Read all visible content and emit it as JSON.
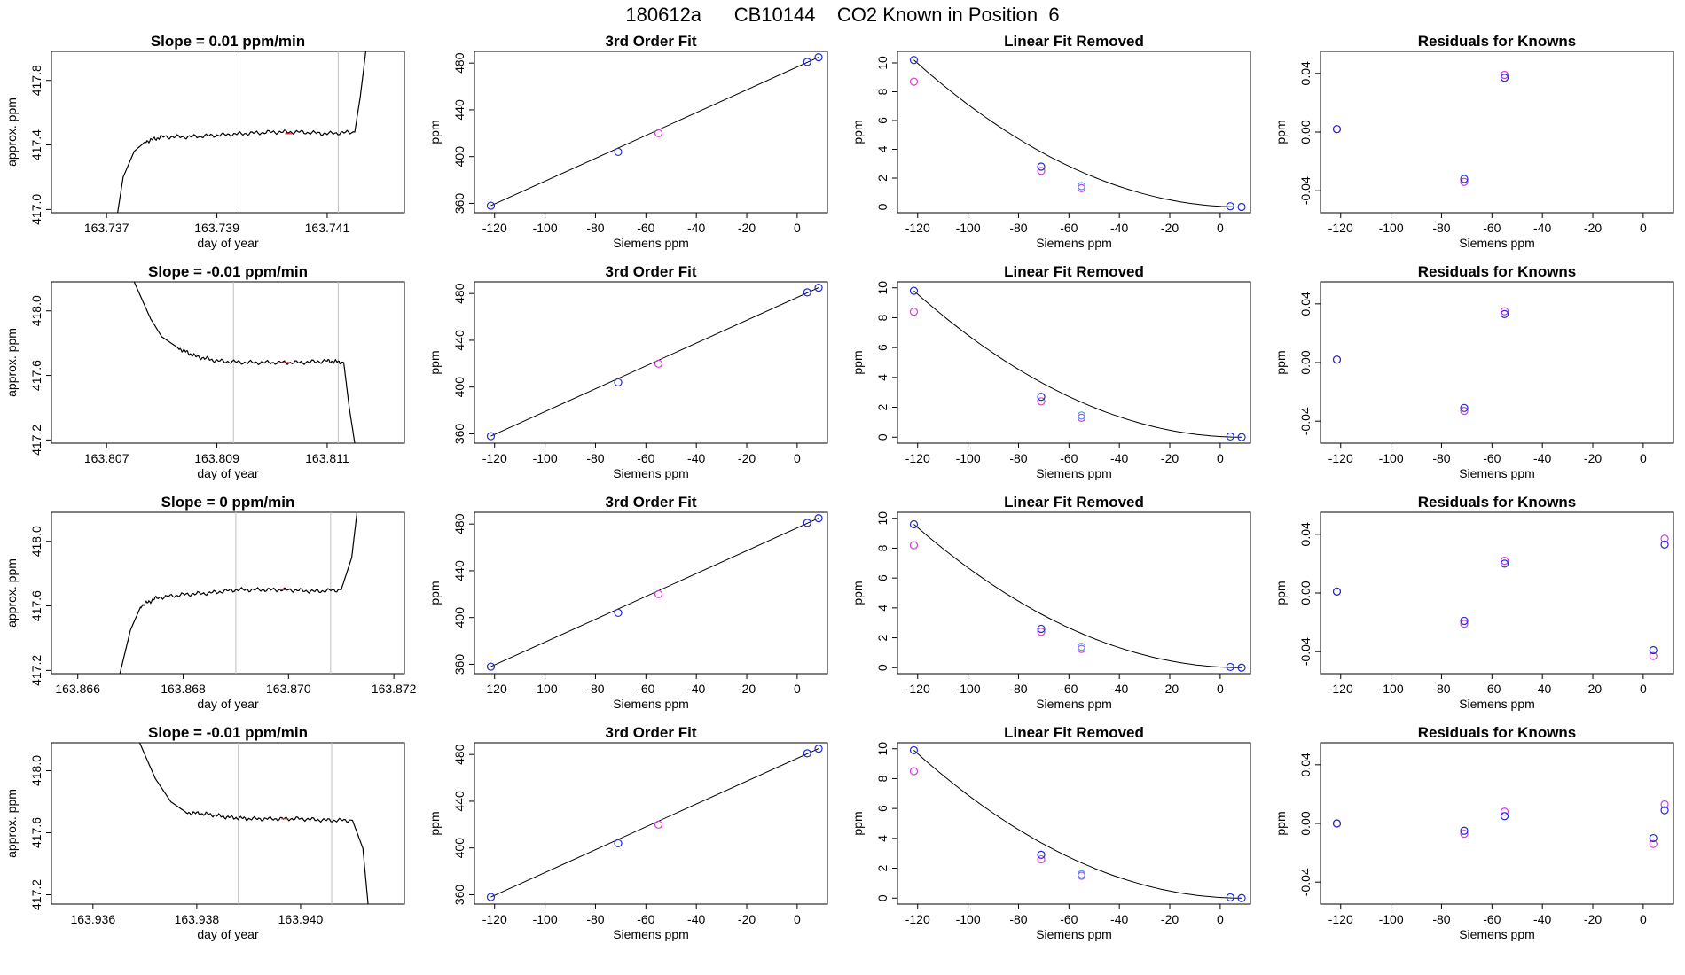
{
  "page": {
    "title": "180612a      CB10144    CO2 Known in Position  6"
  },
  "colors": {
    "axis": "#000000",
    "line": "#000000",
    "blue": "#1f2bd6",
    "magenta": "#d040d8",
    "cyan": "#3aa0e0",
    "red": "#e02020",
    "vline": "#bfbfbf"
  },
  "chart_data": [
    {
      "type": "line",
      "title": "Slope =  0.01  ppm/min",
      "xlabel": "day of year",
      "ylabel": "approx. ppm",
      "xlim": [
        163.736,
        163.7424
      ],
      "ylim": [
        416.98,
        417.98
      ],
      "xticks": [
        "163.737",
        "163.739",
        "163.741"
      ],
      "yticks": [
        "417.0",
        "417.4",
        "417.8"
      ],
      "vlines": [
        163.7394,
        163.7412
      ],
      "series": [
        {
          "x": [
            163.7372,
            163.7373,
            163.7375,
            163.7377,
            163.738,
            163.7385,
            163.739,
            163.7395,
            163.74,
            163.7405,
            163.741,
            163.7415,
            163.7416,
            163.7417
          ],
          "y": [
            416.98,
            417.2,
            417.36,
            417.42,
            417.45,
            417.45,
            417.46,
            417.47,
            417.48,
            417.48,
            417.47,
            417.48,
            417.7,
            417.98
          ]
        }
      ]
    },
    {
      "type": "line",
      "title": "3rd Order Fit",
      "xlabel": "Siemens ppm",
      "ylabel": "ppm",
      "xlim": [
        -128,
        12
      ],
      "ylim": [
        352,
        490
      ],
      "xticks": [
        "-120",
        "-100",
        "-80",
        "-60",
        "-40",
        "-20",
        "0"
      ],
      "yticks": [
        "360",
        "400",
        "440",
        "480"
      ],
      "series": [
        {
          "name": "fit",
          "x": [
            -121.5,
            8.5
          ],
          "y": [
            358,
            485
          ]
        },
        {
          "name": "blue points",
          "x": [
            -121.5,
            -71,
            4,
            8.5
          ],
          "y": [
            358,
            404,
            481,
            485
          ]
        },
        {
          "name": "magenta points",
          "x": [
            -55
          ],
          "y": [
            420
          ]
        }
      ]
    },
    {
      "type": "line",
      "title": "Linear Fit Removed",
      "xlabel": "Siemens ppm",
      "ylabel": "ppm",
      "xlim": [
        -128,
        12
      ],
      "ylim": [
        -0.4,
        10.8
      ],
      "xticks": [
        "-120",
        "-100",
        "-80",
        "-60",
        "-40",
        "-20",
        "0"
      ],
      "yticks": [
        "0",
        "2",
        "4",
        "6",
        "8",
        "10"
      ],
      "series": [
        {
          "name": "blue points",
          "x": [
            -121.5,
            -71,
            -55,
            4,
            8.5
          ],
          "y": [
            10.2,
            2.8,
            1.45,
            0.05,
            0.0
          ]
        },
        {
          "name": "magenta points",
          "x": [
            -121.5,
            -71,
            -55
          ],
          "y": [
            8.7,
            2.5,
            1.3
          ]
        }
      ]
    },
    {
      "type": "scatter",
      "title": "Residuals for Knowns",
      "xlabel": "Siemens ppm",
      "ylabel": "ppm",
      "xlim": [
        -128,
        12
      ],
      "ylim": [
        -0.055,
        0.055
      ],
      "xticks": [
        "-120",
        "-100",
        "-80",
        "-60",
        "-40",
        "-20",
        "0"
      ],
      "yticks": [
        "-0.04",
        "0.00",
        "0.04"
      ],
      "series": [
        {
          "name": "blue points",
          "x": [
            -121.5,
            -71,
            -55
          ],
          "y": [
            0.002,
            -0.032,
            0.037
          ]
        },
        {
          "name": "magenta points",
          "x": [
            -121.5,
            -71,
            -55
          ],
          "y": [
            0.002,
            -0.034,
            0.039
          ]
        }
      ]
    },
    {
      "type": "line",
      "title": "Slope =  -0.01  ppm/min",
      "xlabel": "day of year",
      "ylabel": "approx. ppm",
      "xlim": [
        163.806,
        163.8124
      ],
      "ylim": [
        417.18,
        418.18
      ],
      "xticks": [
        "163.807",
        "163.809",
        "163.811"
      ],
      "yticks": [
        "417.2",
        "417.6",
        "418.0"
      ],
      "vlines": [
        163.8093,
        163.8112
      ],
      "series": [
        {
          "x": [
            163.8075,
            163.8078,
            163.808,
            163.8083,
            163.8086,
            163.809,
            163.8095,
            163.81,
            163.8105,
            163.811,
            163.8113,
            163.8114,
            163.8115
          ],
          "y": [
            418.18,
            417.95,
            417.84,
            417.77,
            417.72,
            417.69,
            417.68,
            417.68,
            417.68,
            417.69,
            417.68,
            417.4,
            417.18
          ]
        }
      ]
    },
    {
      "type": "line",
      "title": "3rd Order Fit",
      "xlabel": "Siemens ppm",
      "ylabel": "ppm",
      "xlim": [
        -128,
        12
      ],
      "ylim": [
        352,
        490
      ],
      "xticks": [
        "-120",
        "-100",
        "-80",
        "-60",
        "-40",
        "-20",
        "0"
      ],
      "yticks": [
        "360",
        "400",
        "440",
        "480"
      ],
      "series": [
        {
          "name": "fit",
          "x": [
            -121.5,
            8.5
          ],
          "y": [
            358,
            485
          ]
        },
        {
          "name": "blue points",
          "x": [
            -121.5,
            -71,
            4,
            8.5
          ],
          "y": [
            358,
            404,
            481,
            485
          ]
        },
        {
          "name": "magenta points",
          "x": [
            -55
          ],
          "y": [
            420
          ]
        }
      ]
    },
    {
      "type": "line",
      "title": "Linear Fit Removed",
      "xlabel": "Siemens ppm",
      "ylabel": "ppm",
      "xlim": [
        -128,
        12
      ],
      "ylim": [
        -0.4,
        10.4
      ],
      "xticks": [
        "-120",
        "-100",
        "-80",
        "-60",
        "-40",
        "-20",
        "0"
      ],
      "yticks": [
        "0",
        "2",
        "4",
        "6",
        "8",
        "10"
      ],
      "series": [
        {
          "name": "blue points",
          "x": [
            -121.5,
            -71,
            -55,
            4,
            8.5
          ],
          "y": [
            9.8,
            2.7,
            1.45,
            0.05,
            0.0
          ]
        },
        {
          "name": "magenta points",
          "x": [
            -121.5,
            -71,
            -55
          ],
          "y": [
            8.4,
            2.4,
            1.3
          ]
        }
      ]
    },
    {
      "type": "scatter",
      "title": "Residuals for Knowns",
      "xlabel": "Siemens ppm",
      "ylabel": "ppm",
      "xlim": [
        -128,
        12
      ],
      "ylim": [
        -0.055,
        0.055
      ],
      "xticks": [
        "-120",
        "-100",
        "-80",
        "-60",
        "-40",
        "-20",
        "0"
      ],
      "yticks": [
        "-0.04",
        "0.00",
        "0.04"
      ],
      "series": [
        {
          "name": "blue points",
          "x": [
            -121.5,
            -71,
            -55
          ],
          "y": [
            0.002,
            -0.031,
            0.033
          ]
        },
        {
          "name": "magenta points",
          "x": [
            -121.5,
            -71,
            -55
          ],
          "y": [
            0.002,
            -0.033,
            0.035
          ]
        }
      ]
    },
    {
      "type": "line",
      "title": "Slope =  0  ppm/min",
      "xlabel": "day of year",
      "ylabel": "approx. ppm",
      "xlim": [
        163.8655,
        163.8722
      ],
      "ylim": [
        417.18,
        418.18
      ],
      "xticks": [
        "163.866",
        "163.868",
        "163.870",
        "163.872"
      ],
      "yticks": [
        "417.2",
        "417.6",
        "418.0"
      ],
      "vlines": [
        163.869,
        163.8708
      ],
      "series": [
        {
          "x": [
            163.8668,
            163.867,
            163.8672,
            163.8675,
            163.868,
            163.8685,
            163.869,
            163.8695,
            163.87,
            163.8705,
            163.871,
            163.8712,
            163.8713
          ],
          "y": [
            417.18,
            417.45,
            417.6,
            417.65,
            417.67,
            417.68,
            417.7,
            417.7,
            417.7,
            417.69,
            417.7,
            417.9,
            418.18
          ]
        }
      ]
    },
    {
      "type": "line",
      "title": "3rd Order Fit",
      "xlabel": "Siemens ppm",
      "ylabel": "ppm",
      "xlim": [
        -128,
        12
      ],
      "ylim": [
        352,
        490
      ],
      "xticks": [
        "-120",
        "-100",
        "-80",
        "-60",
        "-40",
        "-20",
        "0"
      ],
      "yticks": [
        "360",
        "400",
        "440",
        "480"
      ],
      "series": [
        {
          "name": "fit",
          "x": [
            -121.5,
            8.5
          ],
          "y": [
            358,
            485
          ]
        },
        {
          "name": "blue points",
          "x": [
            -121.5,
            -71,
            4,
            8.5
          ],
          "y": [
            358,
            404,
            481,
            485
          ]
        },
        {
          "name": "magenta points",
          "x": [
            -55
          ],
          "y": [
            420
          ]
        }
      ]
    },
    {
      "type": "line",
      "title": "Linear Fit Removed",
      "xlabel": "Siemens ppm",
      "ylabel": "ppm",
      "xlim": [
        -128,
        12
      ],
      "ylim": [
        -0.4,
        10.4
      ],
      "xticks": [
        "-120",
        "-100",
        "-80",
        "-60",
        "-40",
        "-20",
        "0"
      ],
      "yticks": [
        "0",
        "2",
        "4",
        "6",
        "8",
        "10"
      ],
      "series": [
        {
          "name": "blue points",
          "x": [
            -121.5,
            -71,
            -55,
            4,
            8.5
          ],
          "y": [
            9.6,
            2.6,
            1.4,
            0.05,
            0.0
          ]
        },
        {
          "name": "magenta points",
          "x": [
            -121.5,
            -71,
            -55
          ],
          "y": [
            8.2,
            2.4,
            1.25
          ]
        }
      ]
    },
    {
      "type": "scatter",
      "title": "Residuals for Knowns",
      "xlabel": "Siemens ppm",
      "ylabel": "ppm",
      "xlim": [
        -128,
        12
      ],
      "ylim": [
        -0.055,
        0.055
      ],
      "xticks": [
        "-120",
        "-100",
        "-80",
        "-60",
        "-40",
        "-20",
        "0"
      ],
      "yticks": [
        "-0.04",
        "0.00",
        "0.04"
      ],
      "series": [
        {
          "name": "blue points",
          "x": [
            -121.5,
            -71,
            -55,
            4,
            8.5
          ],
          "y": [
            0.001,
            -0.019,
            0.02,
            -0.039,
            0.033
          ]
        },
        {
          "name": "magenta points",
          "x": [
            -121.5,
            -71,
            -55,
            4,
            8.5
          ],
          "y": [
            0.001,
            -0.021,
            0.022,
            -0.043,
            0.037
          ]
        }
      ]
    },
    {
      "type": "line",
      "title": "Slope =  -0.01  ppm/min",
      "xlabel": "day of year",
      "ylabel": "approx. ppm",
      "xlim": [
        163.9352,
        163.942
      ],
      "ylim": [
        417.14,
        418.18
      ],
      "xticks": [
        "163.936",
        "163.938",
        "163.940"
      ],
      "yticks": [
        "417.2",
        "417.6",
        "418.0"
      ],
      "vlines": [
        163.9388,
        163.9406
      ],
      "series": [
        {
          "x": [
            163.9369,
            163.9372,
            163.9375,
            163.9378,
            163.9382,
            163.9386,
            163.939,
            163.9395,
            163.94,
            163.9405,
            163.941,
            163.9412,
            163.9413
          ],
          "y": [
            418.18,
            417.95,
            417.8,
            417.73,
            417.72,
            417.7,
            417.69,
            417.69,
            417.69,
            417.68,
            417.68,
            417.5,
            417.14
          ]
        }
      ]
    },
    {
      "type": "line",
      "title": "3rd Order Fit",
      "xlabel": "Siemens ppm",
      "ylabel": "ppm",
      "xlim": [
        -128,
        12
      ],
      "ylim": [
        352,
        490
      ],
      "xticks": [
        "-120",
        "-100",
        "-80",
        "-60",
        "-40",
        "-20",
        "0"
      ],
      "yticks": [
        "360",
        "400",
        "440",
        "480"
      ],
      "series": [
        {
          "name": "fit",
          "x": [
            -121.5,
            8.5
          ],
          "y": [
            358,
            485
          ]
        },
        {
          "name": "blue points",
          "x": [
            -121.5,
            -71,
            4,
            8.5
          ],
          "y": [
            358,
            404,
            481,
            485
          ]
        },
        {
          "name": "magenta points",
          "x": [
            -55
          ],
          "y": [
            420
          ]
        }
      ]
    },
    {
      "type": "line",
      "title": "Linear Fit Removed",
      "xlabel": "Siemens ppm",
      "ylabel": "ppm",
      "xlim": [
        -128,
        12
      ],
      "ylim": [
        -0.4,
        10.4
      ],
      "xticks": [
        "-120",
        "-100",
        "-80",
        "-60",
        "-40",
        "-20",
        "0"
      ],
      "yticks": [
        "0",
        "2",
        "4",
        "6",
        "8",
        "10"
      ],
      "series": [
        {
          "name": "blue points",
          "x": [
            -121.5,
            -71,
            -55,
            4,
            8.5
          ],
          "y": [
            9.9,
            2.9,
            1.6,
            0.05,
            0.0
          ]
        },
        {
          "name": "magenta points",
          "x": [
            -121.5,
            -71,
            -55
          ],
          "y": [
            8.5,
            2.6,
            1.5
          ]
        }
      ]
    },
    {
      "type": "scatter",
      "title": "Residuals for Knowns",
      "xlabel": "Siemens ppm",
      "ylabel": "ppm",
      "xlim": [
        -128,
        12
      ],
      "ylim": [
        -0.055,
        0.055
      ],
      "xticks": [
        "-120",
        "-100",
        "-80",
        "-60",
        "-40",
        "-20",
        "0"
      ],
      "yticks": [
        "-0.04",
        "0.00",
        "0.04"
      ],
      "series": [
        {
          "name": "blue points",
          "x": [
            -121.5,
            -71,
            -55,
            4,
            8.5
          ],
          "y": [
            0.0,
            -0.005,
            0.005,
            -0.01,
            0.009
          ]
        },
        {
          "name": "magenta points",
          "x": [
            -121.5,
            -71,
            -55,
            4,
            8.5
          ],
          "y": [
            0.0,
            -0.007,
            0.008,
            -0.014,
            0.013
          ]
        }
      ]
    }
  ]
}
